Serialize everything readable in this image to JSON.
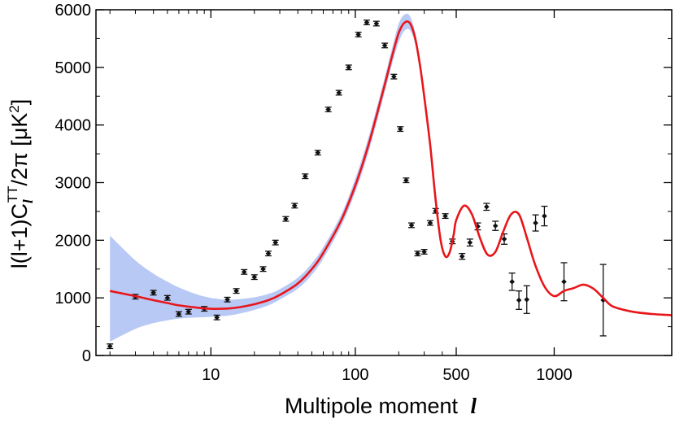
{
  "chart_data": {
    "type": "scatter",
    "title": "",
    "xlabel": "Multipole moment",
    "xlabel_symbol": "l",
    "ylabel": {
      "prefix": "l(l+1)C",
      "subscript": "l",
      "superscript": "TT",
      "suffix": "/2π [μK",
      "unit_power": "2",
      "close": "]"
    },
    "x_scale": "log until 500, linear above",
    "xlim": [
      1.6,
      1600
    ],
    "ylim": [
      0,
      6000
    ],
    "x_ticks": [
      {
        "value": 10,
        "label": "10"
      },
      {
        "value": 100,
        "label": "100"
      },
      {
        "value": 500,
        "label": "500"
      },
      {
        "value": 1000,
        "label": "1000"
      }
    ],
    "y_ticks": [
      {
        "value": 0,
        "label": "0"
      },
      {
        "value": 1000,
        "label": "1000"
      },
      {
        "value": 2000,
        "label": "2000"
      },
      {
        "value": 3000,
        "label": "3000"
      },
      {
        "value": 4000,
        "label": "4000"
      },
      {
        "value": 5000,
        "label": "5000"
      },
      {
        "value": 6000,
        "label": "6000"
      }
    ],
    "grid": false,
    "colors": {
      "model_line": "#e8161a",
      "uncertainty_band": "#b9c9f5",
      "data_points": "#111111"
    },
    "model_curve": {
      "x": [
        2,
        3,
        4,
        5,
        6,
        8,
        10,
        13,
        16,
        20,
        25,
        30,
        40,
        50,
        60,
        80,
        100,
        120,
        140,
        160,
        180,
        200,
        220,
        240,
        260,
        280,
        300,
        330,
        360,
        390,
        420,
        450,
        480,
        500,
        540,
        580,
        620,
        660,
        700,
        740,
        780,
        820,
        860,
        900,
        950,
        1000,
        1050,
        1100,
        1150,
        1200,
        1250,
        1300,
        1400,
        1500,
        1600
      ],
      "y": [
        1120,
        1030,
        960,
        910,
        870,
        830,
        810,
        815,
        840,
        890,
        960,
        1050,
        1250,
        1500,
        1780,
        2350,
        2950,
        3550,
        4150,
        4700,
        5200,
        5600,
        5780,
        5760,
        5500,
        5050,
        4500,
        3650,
        2700,
        2000,
        1720,
        1790,
        2100,
        2350,
        2600,
        2450,
        2050,
        1750,
        1800,
        2150,
        2450,
        2450,
        2050,
        1600,
        1200,
        1030,
        1120,
        1170,
        1230,
        1160,
        1000,
        850,
        760,
        720,
        700
      ]
    },
    "uncertainty_band": {
      "x": [
        2,
        3,
        4,
        5,
        6,
        8,
        10,
        13,
        16,
        20,
        25,
        30,
        40,
        50,
        60,
        80,
        100,
        120,
        140,
        160,
        180,
        200,
        220,
        240,
        260,
        280,
        300
      ],
      "upper": [
        2080,
        1650,
        1420,
        1280,
        1180,
        1060,
        1000,
        970,
        980,
        1010,
        1070,
        1150,
        1350,
        1600,
        1880,
        2450,
        3070,
        3680,
        4280,
        4830,
        5340,
        5760,
        5920,
        5880,
        5600,
        5130,
        4560
      ],
      "lower": [
        240,
        460,
        560,
        610,
        640,
        660,
        670,
        690,
        730,
        790,
        870,
        970,
        1160,
        1400,
        1680,
        2250,
        2830,
        3420,
        4020,
        4570,
        5060,
        5440,
        5640,
        5640,
        5400,
        4970,
        4440
      ]
    },
    "series": [
      {
        "type": "scatter",
        "x": [
          2,
          3,
          4,
          5,
          6,
          7,
          9,
          11,
          13,
          15,
          17,
          20,
          23,
          25,
          28,
          33,
          38,
          45,
          55,
          65,
          77,
          90,
          105,
          120,
          140,
          160,
          185,
          205,
          225,
          245,
          270,
          300,
          330,
          360,
          420,
          470,
          530,
          570,
          610,
          655,
          700,
          745,
          785,
          820,
          860,
          905,
          950,
          1050,
          1250
        ],
        "y": [
          160,
          1020,
          1090,
          1000,
          720,
          760,
          810,
          660,
          970,
          1120,
          1450,
          1360,
          1500,
          1770,
          1960,
          2370,
          2600,
          3110,
          3520,
          4270,
          4560,
          5000,
          5570,
          5780,
          5760,
          5380,
          4840,
          3930,
          3040,
          2260,
          1770,
          1800,
          2300,
          2510,
          2420,
          1980,
          1720,
          1960,
          2240,
          2580,
          2250,
          2020,
          1280,
          960,
          970,
          2300,
          2420,
          1280,
          960
        ],
        "err": [
          40,
          40,
          40,
          40,
          40,
          40,
          40,
          40,
          40,
          40,
          40,
          40,
          40,
          40,
          40,
          40,
          40,
          40,
          40,
          40,
          40,
          40,
          40,
          40,
          40,
          40,
          40,
          40,
          40,
          40,
          40,
          40,
          40,
          40,
          40,
          40,
          50,
          60,
          60,
          60,
          80,
          90,
          150,
          160,
          240,
          140,
          170,
          330,
          620
        ]
      }
    ]
  }
}
